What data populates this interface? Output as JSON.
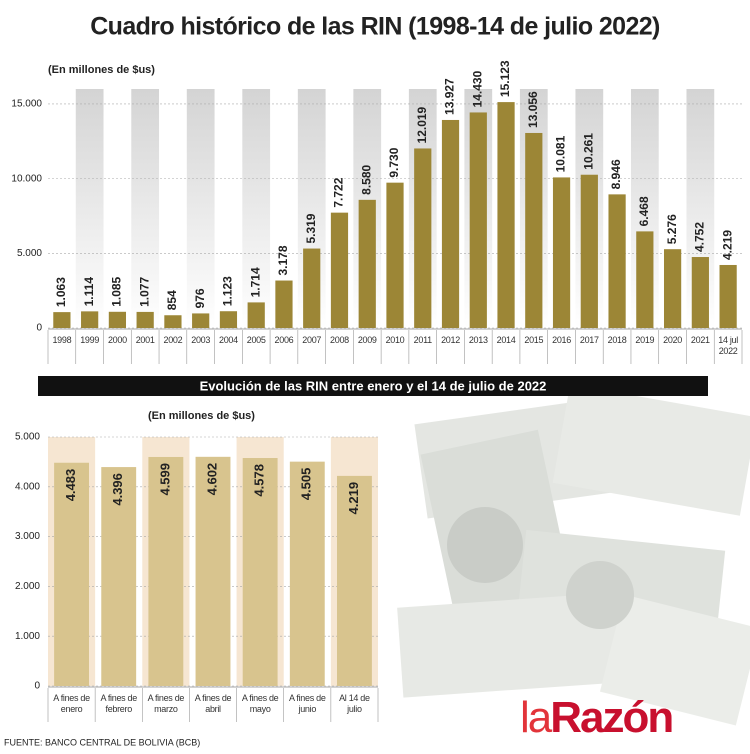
{
  "chart_data": [
    {
      "type": "bar",
      "title": "Cuadro histórico de las RIN (1998-14 de julio 2022)",
      "subtitle": "(En millones de $us)",
      "categories": [
        "1998",
        "1999",
        "2000",
        "2001",
        "2002",
        "2003",
        "2004",
        "2005",
        "2006",
        "2007",
        "2008",
        "2009",
        "2010",
        "2011",
        "2012",
        "2013",
        "2014",
        "2015",
        "2016",
        "2017",
        "2018",
        "2019",
        "2020",
        "2021",
        "14 jul 2022"
      ],
      "values": [
        1063,
        1114,
        1085,
        1077,
        854,
        976,
        1123,
        1714,
        3178,
        5319,
        7722,
        8580,
        9730,
        12019,
        13927,
        14430,
        15123,
        13056,
        10081,
        10261,
        8946,
        6468,
        5276,
        4752,
        4219
      ],
      "value_labels": [
        "1.063",
        "1.114",
        "1.085",
        "1.077",
        "854",
        "976",
        "1.123",
        "1.714",
        "3.178",
        "5.319",
        "7.722",
        "8.580",
        "9.730",
        "12.019",
        "13.927",
        "14.430",
        "15.123",
        "13.056",
        "10.081",
        "10.261",
        "8.946",
        "6.468",
        "5.276",
        "4.752",
        "4.219"
      ],
      "color": "#9c8636",
      "ylim": [
        0,
        16000
      ],
      "yticks": [
        0,
        {
          "value": 5000,
          "label": "5.000"
        },
        {
          "value": 10000,
          "label": "10.000"
        },
        {
          "value": 15000,
          "label": "15.000"
        }
      ],
      "grid": true
    },
    {
      "type": "bar",
      "title": "Evolución de las RIN entre enero y el 14 de julio de 2022",
      "subtitle": "(En millones de $us)",
      "categories": [
        "A fines de enero",
        "A fines de febrero",
        "A fines de marzo",
        "A fines de abril",
        "A fines de mayo",
        "A fines de junio",
        "Al 14 de julio"
      ],
      "values": [
        4483,
        4396,
        4599,
        4602,
        4578,
        4505,
        4219
      ],
      "value_labels": [
        "4.483",
        "4.396",
        "4.599",
        "4.602",
        "4.578",
        "4.505",
        "4.219"
      ],
      "color": "#d8c48e",
      "ylim": [
        0,
        5000
      ],
      "yticks": [
        0,
        {
          "value": 1000,
          "label": "1.000"
        },
        {
          "value": 2000,
          "label": "2.000"
        },
        {
          "value": 3000,
          "label": "3.000"
        },
        {
          "value": 4000,
          "label": "4.000"
        },
        {
          "value": 5000,
          "label": "5.000"
        }
      ],
      "grid": true
    }
  ],
  "source": "FUENTE: BANCO CENTRAL DE BOLIVIA (BCB)",
  "logo": {
    "prefix": "la",
    "name": "Razón"
  }
}
